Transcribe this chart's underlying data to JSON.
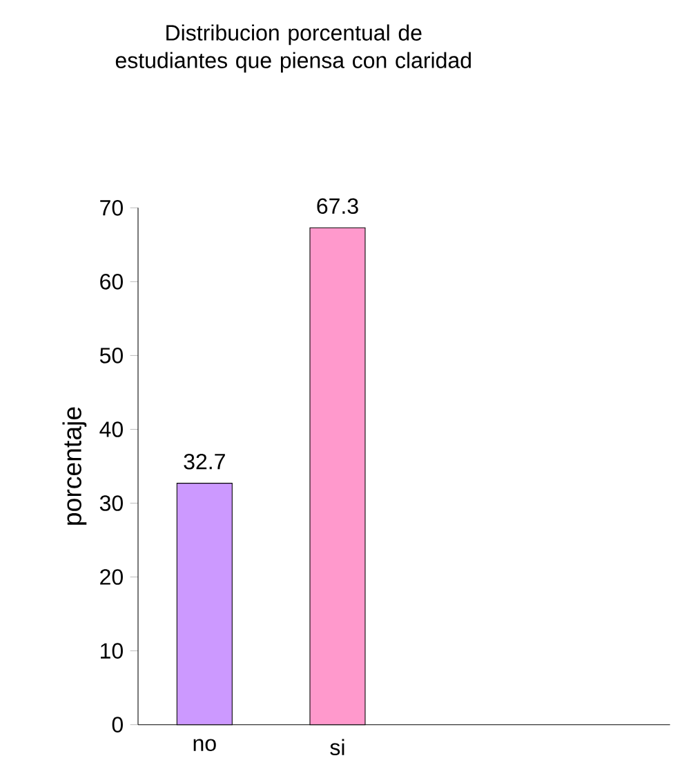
{
  "chart_data": {
    "type": "bar",
    "title": "Distribucion porcentual de estudiantes que piensa  con claridad",
    "ylabel": "porcentaje",
    "categories": [
      "no",
      "si",
      null,
      null
    ],
    "values": [
      32.7,
      67.3,
      null,
      null
    ],
    "colors": [
      "#cc99ff",
      "#ff99cc",
      "#cc99ff",
      "#ff99cc"
    ],
    "data_labels": true,
    "ylim": [
      0,
      70
    ],
    "yticks": [
      0,
      10,
      20,
      30,
      40,
      50,
      60,
      70
    ],
    "grid": false
  }
}
